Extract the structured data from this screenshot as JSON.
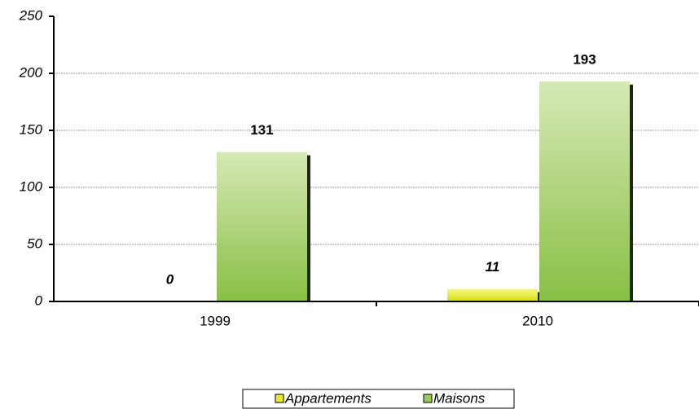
{
  "chart_data": {
    "type": "bar",
    "categories": [
      "1999",
      "2010"
    ],
    "series": [
      {
        "name": "Appartements",
        "color": "#e8ec30",
        "values": [
          0,
          11
        ]
      },
      {
        "name": "Maisons",
        "color": "#9ccb5a",
        "values": [
          131,
          193
        ]
      }
    ],
    "ylim": [
      0,
      250
    ],
    "yticks": [
      0,
      50,
      100,
      150,
      200,
      250
    ],
    "grid": true
  }
}
